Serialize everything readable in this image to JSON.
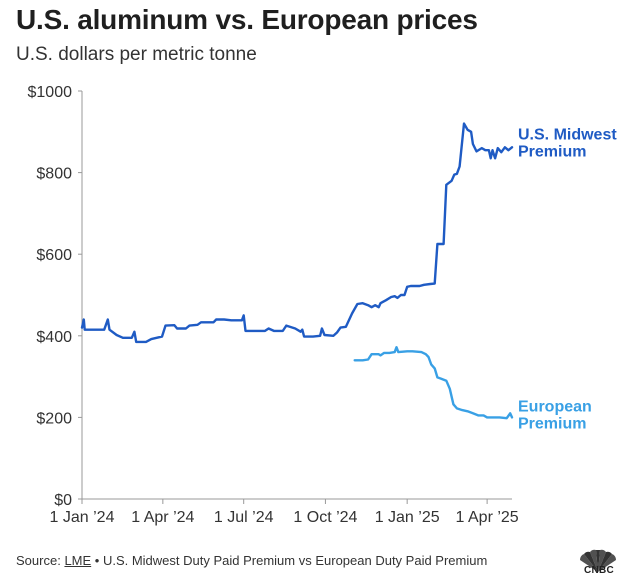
{
  "header": {
    "title": "U.S. aluminum vs. European prices",
    "subtitle": "U.S. dollars per metric tonne"
  },
  "footer": {
    "source_label": "Source:",
    "source_link": "LME",
    "source_rest": " • U.S. Midwest Duty Paid Premium vs European Duty Paid Premium"
  },
  "logo": {
    "text": "CNBC",
    "icon": "cnbc-peacock-icon"
  },
  "colors": {
    "us": "#1f5bc4",
    "eu": "#39a0e5",
    "axis": "#999999",
    "grid": "#e6e6e6"
  },
  "chart_data": {
    "type": "line",
    "title": "U.S. aluminum vs. European prices",
    "ylabel": "U.S. dollars per metric tonne",
    "xlabel": "",
    "ylim": [
      0,
      1000
    ],
    "xlim": [
      0,
      484
    ],
    "y_ticks": [
      0,
      200,
      400,
      600,
      800,
      1000
    ],
    "y_tick_labels": [
      "$0",
      "$200",
      "$400",
      "$600",
      "$800",
      "$1000"
    ],
    "x_ticks": [
      0,
      91,
      182,
      274,
      366,
      456
    ],
    "x_tick_labels": [
      "1 Jan ’24",
      "1 Apr ’24",
      "1 Jul ’24",
      "1 Oct ’24",
      "1 Jan ’25",
      "1 Apr ’25"
    ],
    "x_unit": "days since 1 Jan 2024",
    "grid": false,
    "series": [
      {
        "name": "U.S. Midwest Premium",
        "label_lines": [
          "U.S. Midwest",
          "Premium"
        ],
        "points": [
          [
            0,
            420
          ],
          [
            2,
            440
          ],
          [
            3,
            415
          ],
          [
            25,
            415
          ],
          [
            29,
            440
          ],
          [
            31,
            415
          ],
          [
            39,
            402
          ],
          [
            46,
            395
          ],
          [
            56,
            395
          ],
          [
            59,
            410
          ],
          [
            61,
            385
          ],
          [
            72,
            385
          ],
          [
            78,
            392
          ],
          [
            90,
            398
          ],
          [
            94,
            425
          ],
          [
            104,
            426
          ],
          [
            107,
            418
          ],
          [
            117,
            418
          ],
          [
            121,
            425
          ],
          [
            130,
            427
          ],
          [
            134,
            433
          ],
          [
            148,
            433
          ],
          [
            151,
            440
          ],
          [
            160,
            440
          ],
          [
            168,
            438
          ],
          [
            180,
            438
          ],
          [
            182,
            450
          ],
          [
            184,
            412
          ],
          [
            206,
            412
          ],
          [
            210,
            418
          ],
          [
            216,
            412
          ],
          [
            226,
            412
          ],
          [
            230,
            425
          ],
          [
            240,
            418
          ],
          [
            246,
            410
          ],
          [
            248,
            415
          ],
          [
            250,
            398
          ],
          [
            260,
            398
          ],
          [
            268,
            400
          ],
          [
            270,
            418
          ],
          [
            273,
            402
          ],
          [
            283,
            400
          ],
          [
            287,
            408
          ],
          [
            291,
            420
          ],
          [
            297,
            422
          ],
          [
            304,
            455
          ],
          [
            310,
            478
          ],
          [
            316,
            480
          ],
          [
            322,
            475
          ],
          [
            326,
            470
          ],
          [
            330,
            475
          ],
          [
            334,
            470
          ],
          [
            336,
            480
          ],
          [
            342,
            487
          ],
          [
            348,
            495
          ],
          [
            352,
            497
          ],
          [
            355,
            493
          ],
          [
            359,
            500
          ],
          [
            363,
            500
          ],
          [
            366,
            520
          ],
          [
            370,
            522
          ],
          [
            380,
            522
          ],
          [
            385,
            525
          ],
          [
            392,
            527
          ],
          [
            397,
            528
          ],
          [
            400,
            625
          ],
          [
            404,
            625
          ],
          [
            407,
            625
          ],
          [
            410,
            770
          ],
          [
            416,
            780
          ],
          [
            419,
            795
          ],
          [
            422,
            797
          ],
          [
            425,
            815
          ],
          [
            430,
            920
          ],
          [
            434,
            905
          ],
          [
            438,
            900
          ],
          [
            440,
            870
          ],
          [
            444,
            852
          ],
          [
            450,
            860
          ],
          [
            454,
            855
          ],
          [
            458,
            855
          ],
          [
            460,
            835
          ],
          [
            462,
            855
          ],
          [
            465,
            835
          ],
          [
            468,
            860
          ],
          [
            472,
            850
          ],
          [
            476,
            862
          ],
          [
            480,
            855
          ],
          [
            484,
            862
          ]
        ]
      },
      {
        "name": "European Premium",
        "label_lines": [
          "European",
          "Premium"
        ],
        "points": [
          [
            307,
            340
          ],
          [
            316,
            340
          ],
          [
            322,
            342
          ],
          [
            326,
            355
          ],
          [
            330,
            355
          ],
          [
            334,
            355
          ],
          [
            336,
            352
          ],
          [
            340,
            358
          ],
          [
            346,
            358
          ],
          [
            352,
            360
          ],
          [
            354,
            372
          ],
          [
            356,
            360
          ],
          [
            366,
            362
          ],
          [
            372,
            362
          ],
          [
            382,
            360
          ],
          [
            387,
            355
          ],
          [
            390,
            348
          ],
          [
            393,
            330
          ],
          [
            397,
            320
          ],
          [
            400,
            298
          ],
          [
            404,
            295
          ],
          [
            410,
            290
          ],
          [
            414,
            270
          ],
          [
            418,
            232
          ],
          [
            422,
            222
          ],
          [
            428,
            218
          ],
          [
            434,
            215
          ],
          [
            440,
            210
          ],
          [
            446,
            205
          ],
          [
            452,
            205
          ],
          [
            456,
            200
          ],
          [
            470,
            200
          ],
          [
            478,
            198
          ],
          [
            482,
            210
          ],
          [
            484,
            200
          ]
        ]
      }
    ]
  }
}
